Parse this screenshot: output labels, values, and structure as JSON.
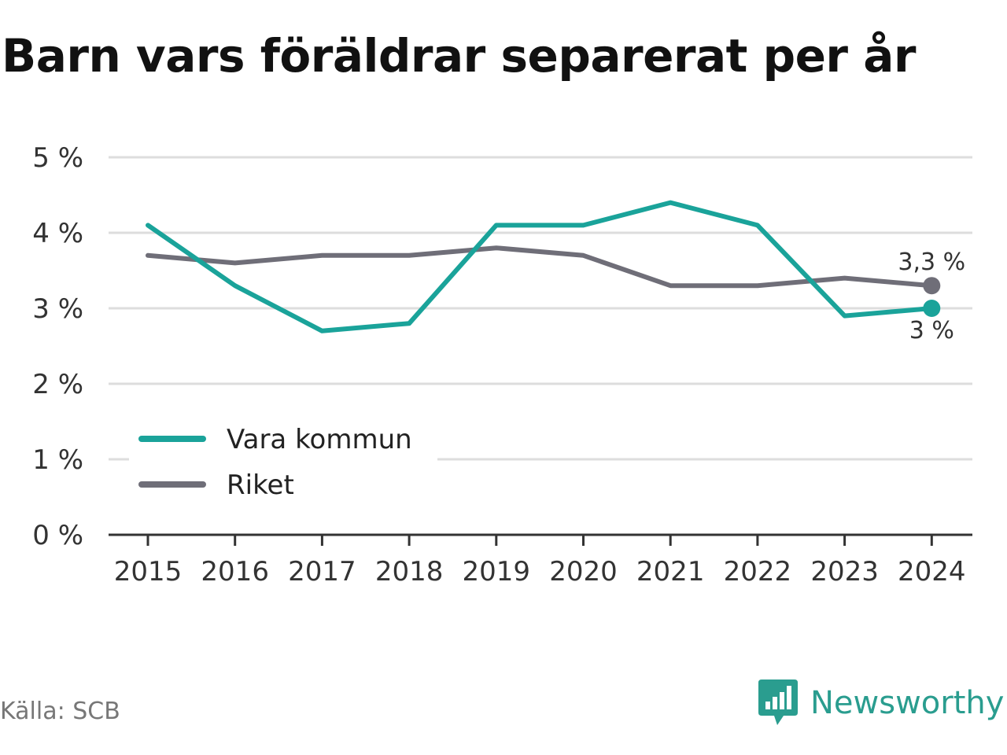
{
  "title": "Barn vars föräldrar separerat per år",
  "source": "Källa: SCB",
  "brand": "Newsworthy",
  "colors": {
    "vara": "#1aa39a",
    "riket": "#6f6e78",
    "grid": "#dddddd",
    "axis": "#333333",
    "brand": "#2a9d8f"
  },
  "chart_data": {
    "type": "line",
    "title": "Barn vars föräldrar separerat per år",
    "xlabel": "",
    "ylabel": "",
    "x": [
      "2015",
      "2016",
      "2017",
      "2018",
      "2019",
      "2020",
      "2021",
      "2022",
      "2023",
      "2024"
    ],
    "ylim": [
      0,
      5
    ],
    "yticks": [
      "0 %",
      "1 %",
      "2 %",
      "3 %",
      "4 %",
      "5 %"
    ],
    "grid": true,
    "legend_position": "bottom-left",
    "series": [
      {
        "name": "Vara kommun",
        "values": [
          4.1,
          3.3,
          2.7,
          2.8,
          4.1,
          4.1,
          4.4,
          4.1,
          2.9,
          3.0
        ],
        "end_label": "3 %",
        "color": "#1aa39a"
      },
      {
        "name": "Riket",
        "values": [
          3.7,
          3.6,
          3.7,
          3.7,
          3.8,
          3.7,
          3.3,
          3.3,
          3.4,
          3.3
        ],
        "end_label": "3,3 %",
        "color": "#6f6e78"
      }
    ]
  }
}
